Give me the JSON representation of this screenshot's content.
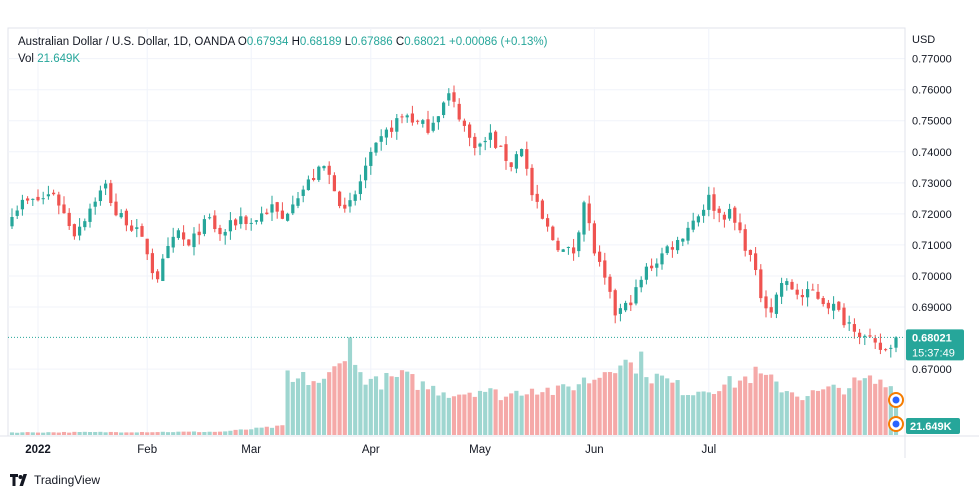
{
  "header": {
    "symbol": "Australian Dollar / U.S. Dollar, 1D, OANDA",
    "open_label": "O",
    "open": "0.67934",
    "high_label": "H",
    "high": "0.68189",
    "low_label": "L",
    "low": "0.67886",
    "close_label": "C",
    "close": "0.68021",
    "change": "+0.00086 (+0.13%)",
    "vol_label": "Vol",
    "vol": "21.649K",
    "currency": "USD"
  },
  "badges": {
    "last_price": "0.68021",
    "countdown": "15:37:49",
    "volume": "21.649K"
  },
  "branding": {
    "name": "TradingView"
  },
  "colors": {
    "up": "#26a69a",
    "down": "#ef5350",
    "vol_up": "#9ed6d0",
    "vol_down": "#f5a9a8",
    "grid": "#f0f3fa"
  },
  "chart_data": {
    "type": "candlestick",
    "title": "Australian Dollar / U.S. Dollar, 1D, OANDA",
    "ylim": [
      0.6615,
      0.7715
    ],
    "y_ticks": [
      "0.77000",
      "0.76000",
      "0.75000",
      "0.74000",
      "0.73000",
      "0.72000",
      "0.71000",
      "0.70000",
      "0.69000",
      "0.67000"
    ],
    "month_labels": [
      {
        "label": "2022",
        "date": "2022-01-03"
      },
      {
        "label": "Feb",
        "date": "2022-02-01"
      },
      {
        "label": "Mar",
        "date": "2022-03-01"
      },
      {
        "label": "Apr",
        "date": "2022-04-01"
      },
      {
        "label": "May",
        "date": "2022-05-02"
      },
      {
        "label": "Jun",
        "date": "2022-06-01"
      },
      {
        "label": "Jul",
        "date": "2022-07-01"
      }
    ],
    "first_date": "2021-12-27",
    "last_price": 0.68021,
    "close_path": [
      {
        "i": 0,
        "c": 0.721
      },
      {
        "i": 2,
        "c": 0.7235
      },
      {
        "i": 4,
        "c": 0.724
      },
      {
        "i": 6,
        "c": 0.725
      },
      {
        "i": 8,
        "c": 0.727
      },
      {
        "i": 10,
        "c": 0.72
      },
      {
        "i": 12,
        "c": 0.714
      },
      {
        "i": 14,
        "c": 0.719
      },
      {
        "i": 16,
        "c": 0.725
      },
      {
        "i": 18,
        "c": 0.729
      },
      {
        "i": 20,
        "c": 0.72
      },
      {
        "i": 22,
        "c": 0.718
      },
      {
        "i": 24,
        "c": 0.714
      },
      {
        "i": 26,
        "c": 0.708
      },
      {
        "i": 27,
        "c": 0.702
      },
      {
        "i": 28,
        "c": 0.7
      },
      {
        "i": 30,
        "c": 0.708
      },
      {
        "i": 32,
        "c": 0.714
      },
      {
        "i": 34,
        "c": 0.709
      },
      {
        "i": 36,
        "c": 0.715
      },
      {
        "i": 38,
        "c": 0.718
      },
      {
        "i": 40,
        "c": 0.713
      },
      {
        "i": 42,
        "c": 0.716
      },
      {
        "i": 44,
        "c": 0.719
      },
      {
        "i": 46,
        "c": 0.717
      },
      {
        "i": 48,
        "c": 0.72
      },
      {
        "i": 50,
        "c": 0.722
      },
      {
        "i": 52,
        "c": 0.718
      },
      {
        "i": 54,
        "c": 0.725
      },
      {
        "i": 56,
        "c": 0.728
      },
      {
        "i": 58,
        "c": 0.732
      },
      {
        "i": 60,
        "c": 0.735
      },
      {
        "i": 62,
        "c": 0.729
      },
      {
        "i": 64,
        "c": 0.72
      },
      {
        "i": 66,
        "c": 0.726
      },
      {
        "i": 68,
        "c": 0.735
      },
      {
        "i": 70,
        "c": 0.741
      },
      {
        "i": 72,
        "c": 0.746
      },
      {
        "i": 74,
        "c": 0.75
      },
      {
        "i": 76,
        "c": 0.752
      },
      {
        "i": 78,
        "c": 0.749
      },
      {
        "i": 80,
        "c": 0.748
      },
      {
        "i": 82,
        "c": 0.753
      },
      {
        "i": 84,
        "c": 0.758
      },
      {
        "i": 86,
        "c": 0.752
      },
      {
        "i": 88,
        "c": 0.744
      },
      {
        "i": 90,
        "c": 0.742
      },
      {
        "i": 92,
        "c": 0.745
      },
      {
        "i": 94,
        "c": 0.74
      },
      {
        "i": 96,
        "c": 0.736
      },
      {
        "i": 98,
        "c": 0.742
      },
      {
        "i": 100,
        "c": 0.726
      },
      {
        "i": 102,
        "c": 0.718
      },
      {
        "i": 104,
        "c": 0.712
      },
      {
        "i": 106,
        "c": 0.708
      },
      {
        "i": 108,
        "c": 0.708
      },
      {
        "i": 110,
        "c": 0.724
      },
      {
        "i": 112,
        "c": 0.708
      },
      {
        "i": 114,
        "c": 0.698
      },
      {
        "i": 116,
        "c": 0.688
      },
      {
        "i": 118,
        "c": 0.69
      },
      {
        "i": 120,
        "c": 0.695
      },
      {
        "i": 122,
        "c": 0.702
      },
      {
        "i": 124,
        "c": 0.705
      },
      {
        "i": 126,
        "c": 0.709
      },
      {
        "i": 128,
        "c": 0.711
      },
      {
        "i": 130,
        "c": 0.716
      },
      {
        "i": 132,
        "c": 0.72
      },
      {
        "i": 134,
        "c": 0.725
      },
      {
        "i": 136,
        "c": 0.72
      },
      {
        "i": 138,
        "c": 0.72
      },
      {
        "i": 140,
        "c": 0.714
      },
      {
        "i": 142,
        "c": 0.706
      },
      {
        "i": 144,
        "c": 0.694
      },
      {
        "i": 146,
        "c": 0.689
      },
      {
        "i": 148,
        "c": 0.698
      },
      {
        "i": 150,
        "c": 0.696
      },
      {
        "i": 152,
        "c": 0.693
      },
      {
        "i": 154,
        "c": 0.695
      },
      {
        "i": 156,
        "c": 0.692
      },
      {
        "i": 158,
        "c": 0.69
      },
      {
        "i": 160,
        "c": 0.686
      },
      {
        "i": 162,
        "c": 0.684
      },
      {
        "i": 164,
        "c": 0.68
      },
      {
        "i": 166,
        "c": 0.677
      },
      {
        "i": 168,
        "c": 0.676
      },
      {
        "i": 170,
        "c": 0.6802
      }
    ],
    "volume_k": [
      {
        "i": 0,
        "v": 1.2
      },
      {
        "i": 40,
        "v": 1.5
      },
      {
        "i": 52,
        "v": 4
      },
      {
        "i": 53,
        "v": 28
      },
      {
        "i": 54,
        "v": 24
      },
      {
        "i": 56,
        "v": 26
      },
      {
        "i": 60,
        "v": 24
      },
      {
        "i": 62,
        "v": 30
      },
      {
        "i": 63,
        "v": 32
      },
      {
        "i": 65,
        "v": 48
      },
      {
        "i": 66,
        "v": 30
      },
      {
        "i": 70,
        "v": 24
      },
      {
        "i": 75,
        "v": 27
      },
      {
        "i": 80,
        "v": 22
      },
      {
        "i": 85,
        "v": 19
      },
      {
        "i": 90,
        "v": 21
      },
      {
        "i": 95,
        "v": 18
      },
      {
        "i": 100,
        "v": 22
      },
      {
        "i": 105,
        "v": 20
      },
      {
        "i": 110,
        "v": 25
      },
      {
        "i": 112,
        "v": 26
      },
      {
        "i": 115,
        "v": 32
      },
      {
        "i": 117,
        "v": 35
      },
      {
        "i": 119,
        "v": 32
      },
      {
        "i": 121,
        "v": 34
      },
      {
        "i": 123,
        "v": 27
      },
      {
        "i": 125,
        "v": 26
      },
      {
        "i": 130,
        "v": 20
      },
      {
        "i": 135,
        "v": 22
      },
      {
        "i": 140,
        "v": 25
      },
      {
        "i": 143,
        "v": 28
      },
      {
        "i": 145,
        "v": 26
      },
      {
        "i": 148,
        "v": 22
      },
      {
        "i": 152,
        "v": 18
      },
      {
        "i": 156,
        "v": 20
      },
      {
        "i": 160,
        "v": 22
      },
      {
        "i": 163,
        "v": 24
      },
      {
        "i": 165,
        "v": 25
      },
      {
        "i": 168,
        "v": 23
      },
      {
        "i": 170,
        "v": 21.6
      }
    ],
    "volume_max_k": 48
  }
}
